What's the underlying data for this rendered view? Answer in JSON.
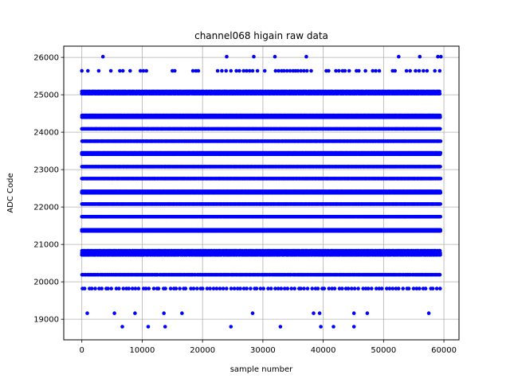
{
  "chart_data": {
    "type": "scatter",
    "title": "channel068 higain raw data",
    "xlabel": "sample number",
    "ylabel": "ADC Code",
    "xlim": [
      -3000,
      62500
    ],
    "ylim": [
      18450,
      26300
    ],
    "xticks": [
      0,
      10000,
      20000,
      30000,
      40000,
      50000,
      60000
    ],
    "xtick_labels": [
      "0",
      "10000",
      "20000",
      "30000",
      "40000",
      "50000",
      "60000"
    ],
    "yticks": [
      19000,
      20000,
      21000,
      22000,
      23000,
      24000,
      25000,
      26000
    ],
    "ytick_labels": [
      "19000",
      "20000",
      "21000",
      "22000",
      "23000",
      "24000",
      "25000",
      "26000"
    ],
    "grid": true,
    "marker_color": "#0000ff",
    "x_range": [
      0,
      59500
    ],
    "dense_levels": [
      {
        "y": 25090,
        "density": "medium"
      },
      {
        "y": 25030,
        "density": "medium"
      },
      {
        "y": 24450,
        "density": "full"
      },
      {
        "y": 24400,
        "density": "full"
      },
      {
        "y": 24090,
        "density": "full"
      },
      {
        "y": 23760,
        "density": "full"
      },
      {
        "y": 23450,
        "density": "full"
      },
      {
        "y": 23410,
        "density": "full"
      },
      {
        "y": 23080,
        "density": "full"
      },
      {
        "y": 22760,
        "density": "full"
      },
      {
        "y": 22420,
        "density": "full"
      },
      {
        "y": 22380,
        "density": "full"
      },
      {
        "y": 22080,
        "density": "full"
      },
      {
        "y": 21740,
        "density": "full"
      },
      {
        "y": 21390,
        "density": "full"
      },
      {
        "y": 21360,
        "density": "full"
      },
      {
        "y": 20830,
        "density": "medium"
      },
      {
        "y": 20770,
        "density": "full"
      },
      {
        "y": 20720,
        "density": "medium"
      },
      {
        "y": 20190,
        "density": "medium"
      },
      {
        "y": 19820,
        "density": "sparse"
      }
    ],
    "outliers": {
      "y26020": [
        3500,
        24000,
        28500,
        32000,
        37200,
        52500,
        56000,
        59000,
        59500
      ],
      "y25640": [
        0,
        1000,
        2800,
        4800,
        6300,
        6800,
        8000,
        9700,
        10200,
        10700,
        15000,
        15400,
        18400,
        18900,
        19300,
        22500,
        23200,
        23900,
        24700,
        25600,
        26100,
        26800,
        27300,
        27800,
        28300,
        29100,
        30300,
        32100,
        32600,
        33100,
        33500,
        34000,
        34500,
        35000,
        35400,
        35800,
        36300,
        36800,
        37300,
        38000,
        40500,
        40900,
        42100,
        42600,
        43200,
        43600,
        44300,
        45500,
        45900,
        47000,
        48200,
        48700,
        49300,
        51500,
        51900,
        53800,
        54400,
        55300,
        55900,
        56600,
        57200,
        58500,
        59300
      ],
      "y19160": [
        900,
        5400,
        8800,
        13600,
        16600,
        28300,
        38400,
        39400,
        45100,
        47300,
        57500
      ],
      "y18800": [
        6700,
        11000,
        13800,
        24700,
        32900,
        39600,
        41700,
        45100
      ]
    }
  }
}
